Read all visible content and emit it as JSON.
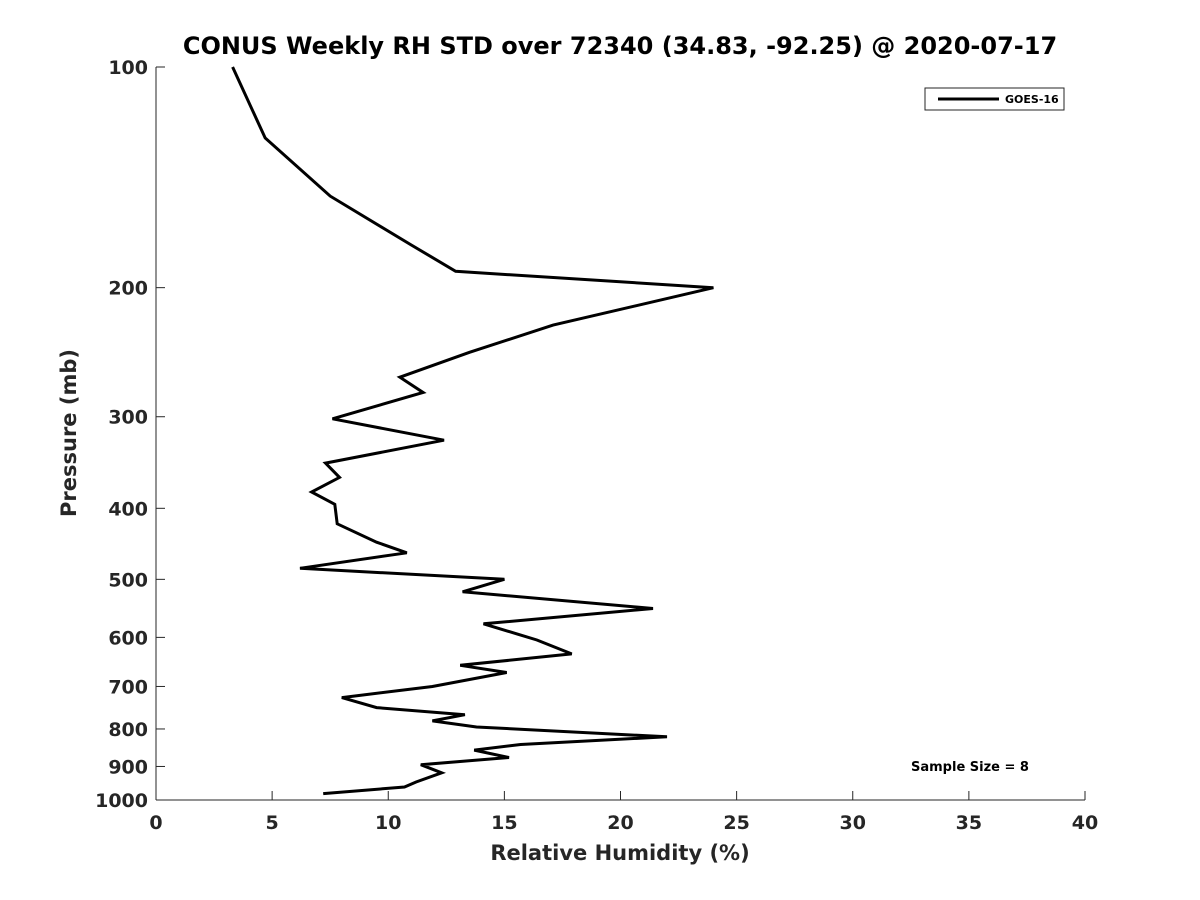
{
  "chart_data": {
    "type": "line",
    "title": "CONUS Weekly RH STD over 72340 (34.83, -92.25) @ 2020-07-17",
    "xlabel": "Relative Humidity (%)",
    "ylabel": "Pressure (mb)",
    "xlim": [
      0,
      40
    ],
    "ylim": [
      100,
      1000
    ],
    "y_scale": "log",
    "y_reversed": true,
    "x_ticks": [
      0,
      5,
      10,
      15,
      20,
      25,
      30,
      35,
      40
    ],
    "y_ticks": [
      100,
      200,
      300,
      400,
      500,
      600,
      700,
      800,
      900,
      1000
    ],
    "grid": false,
    "legend_position": "top-right",
    "annotation": "Sample Size = 8",
    "series": [
      {
        "name": "GOES-16",
        "color": "#000000",
        "points": [
          [
            3.3,
            100
          ],
          [
            4.7,
            125
          ],
          [
            7.5,
            150
          ],
          [
            11.0,
            175
          ],
          [
            12.9,
            190
          ],
          [
            24.0,
            200
          ],
          [
            17.1,
            225
          ],
          [
            13.5,
            245
          ],
          [
            10.5,
            265
          ],
          [
            11.5,
            278
          ],
          [
            7.6,
            302
          ],
          [
            12.4,
            323
          ],
          [
            7.3,
            347
          ],
          [
            7.9,
            363
          ],
          [
            6.7,
            380
          ],
          [
            7.7,
            395
          ],
          [
            7.8,
            420
          ],
          [
            9.5,
            445
          ],
          [
            10.8,
            460
          ],
          [
            6.2,
            483
          ],
          [
            15.0,
            500
          ],
          [
            13.2,
            520
          ],
          [
            21.4,
            548
          ],
          [
            14.1,
            575
          ],
          [
            16.4,
            605
          ],
          [
            17.9,
            632
          ],
          [
            13.1,
            655
          ],
          [
            15.1,
            670
          ],
          [
            11.9,
            700
          ],
          [
            8.0,
            725
          ],
          [
            9.5,
            748
          ],
          [
            13.3,
            765
          ],
          [
            11.9,
            780
          ],
          [
            13.8,
            795
          ],
          [
            22.0,
            820
          ],
          [
            15.7,
            840
          ],
          [
            13.7,
            855
          ],
          [
            15.2,
            875
          ],
          [
            11.4,
            895
          ],
          [
            12.3,
            918
          ],
          [
            11.2,
            945
          ],
          [
            10.7,
            960
          ],
          [
            7.2,
            980
          ]
        ]
      }
    ]
  }
}
